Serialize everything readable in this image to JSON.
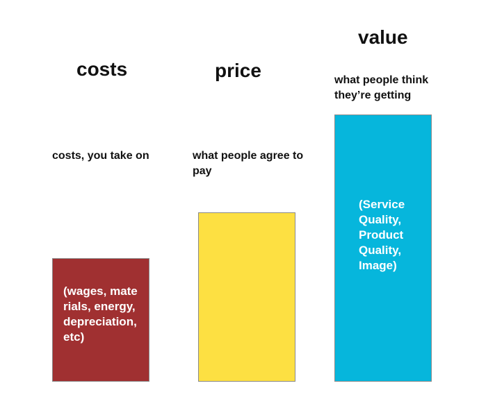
{
  "columns": {
    "costs": {
      "title": "costs",
      "description": "costs, you take on",
      "bar_text": "(wages, materials, energy, depreciation, etc)",
      "bar_color": "#a03031"
    },
    "price": {
      "title": "price",
      "description": "what people agree to pay",
      "bar_text": "",
      "bar_color": "#fde042"
    },
    "value": {
      "title": "value",
      "description": "what people think they’re getting",
      "bar_text": "(Service Quality, Product Quality, Image)",
      "bar_color": "#06b6dc"
    }
  }
}
